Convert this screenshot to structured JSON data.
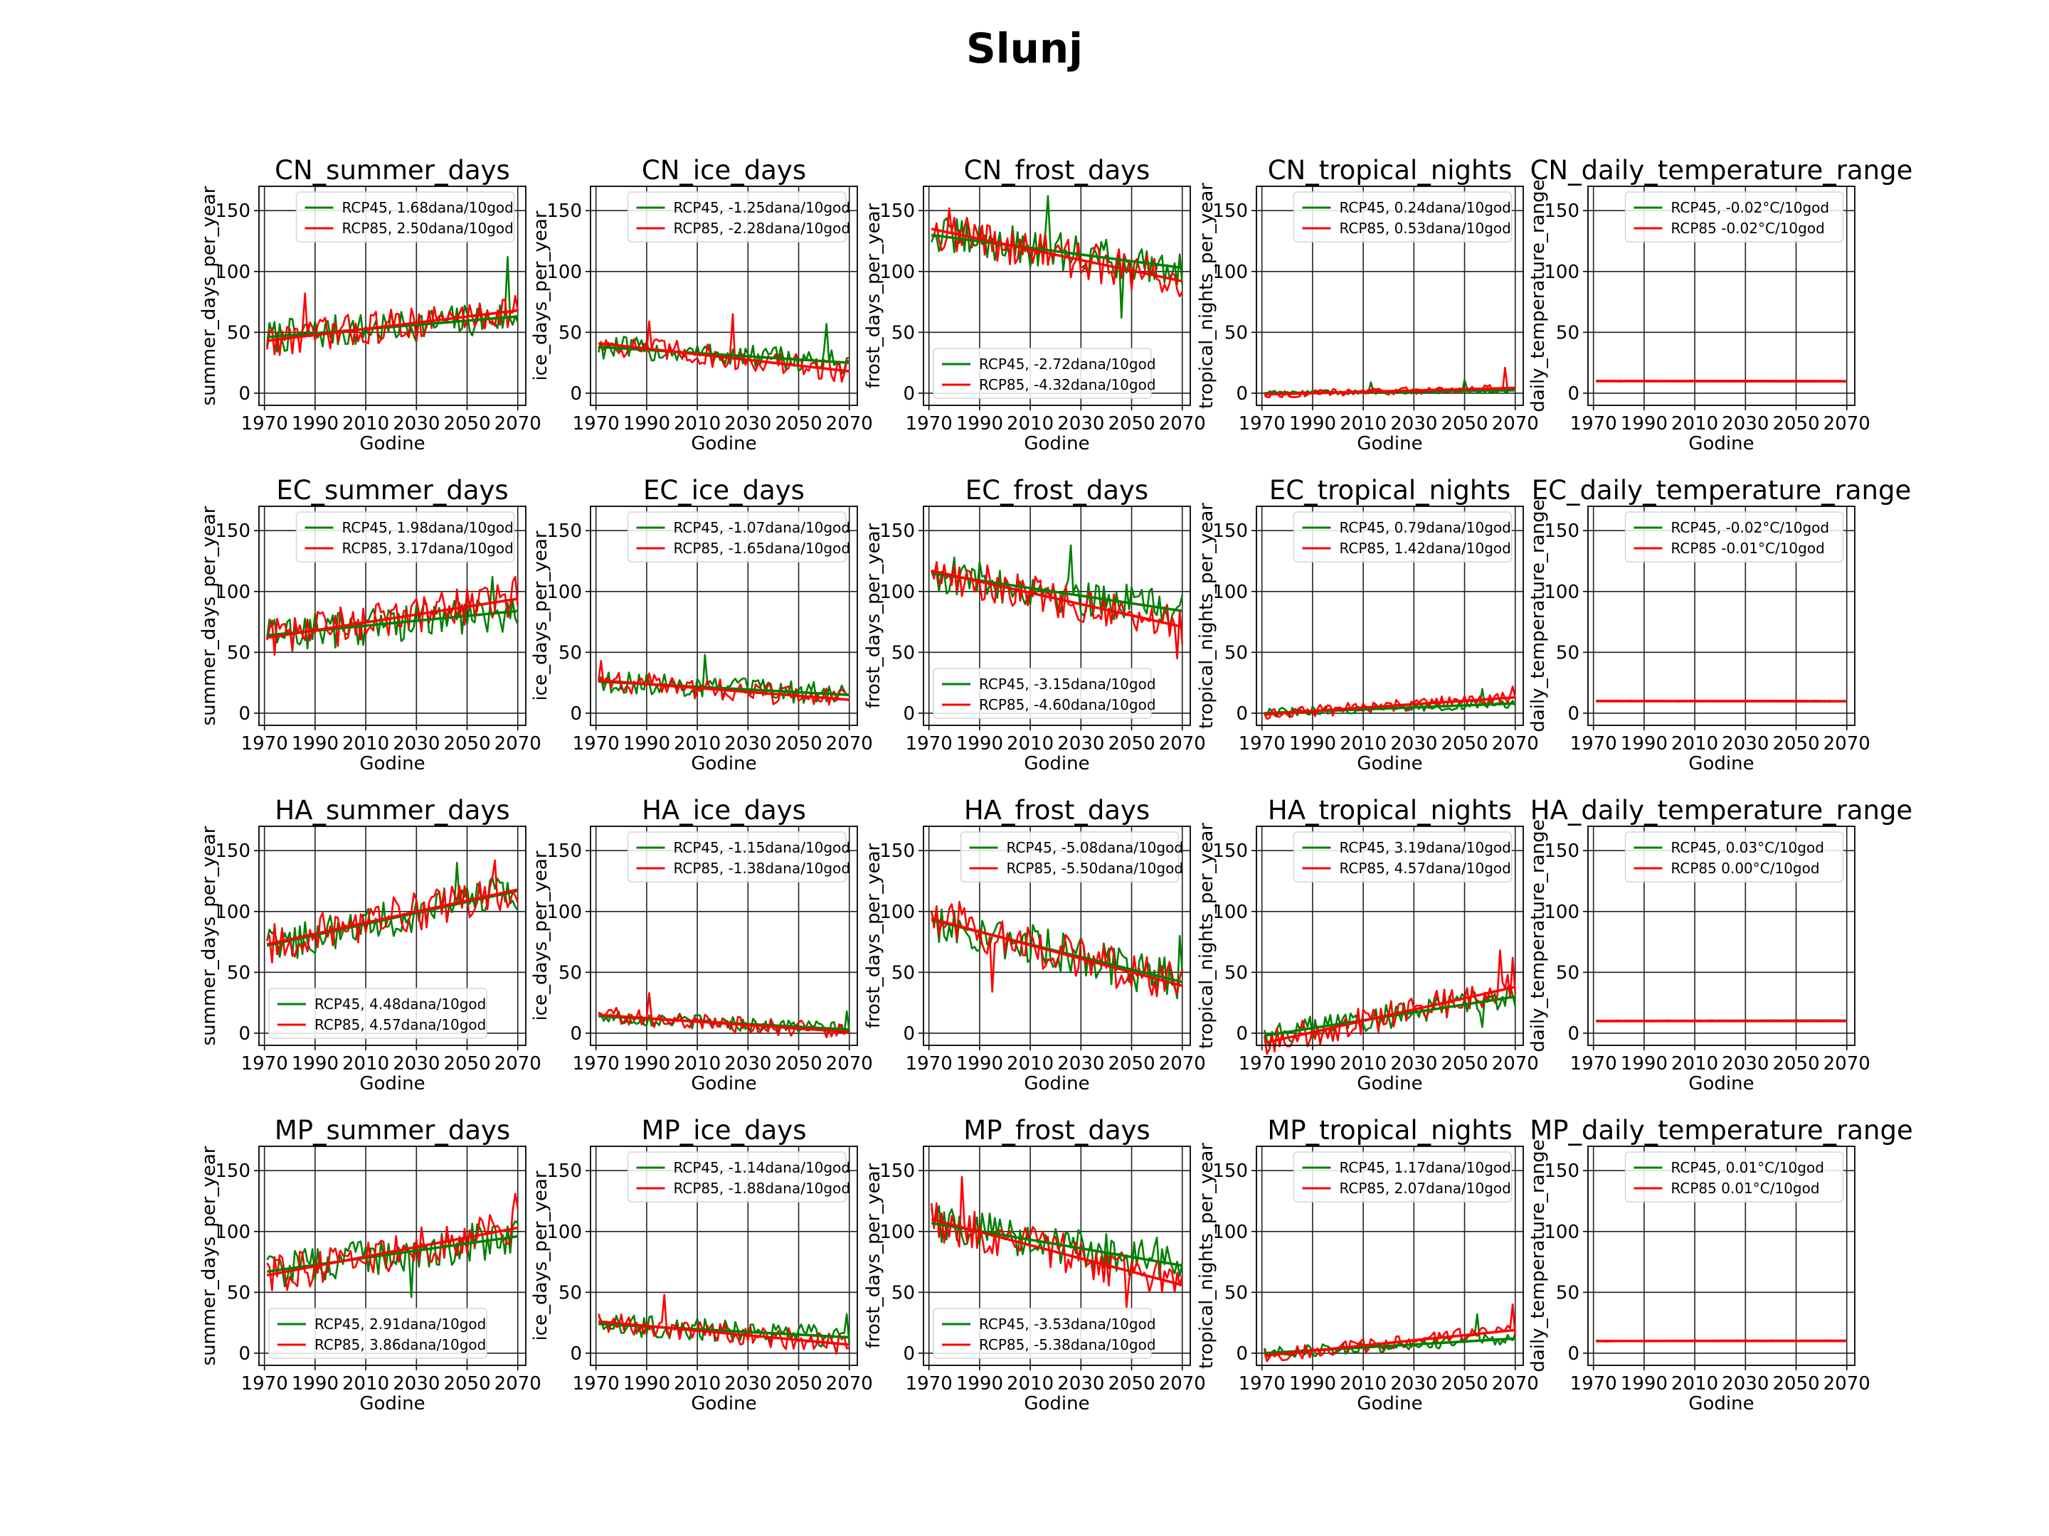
{
  "figure_title": "Slunj",
  "colors": {
    "RCP45": "#008000",
    "RCP85": "#ff0000",
    "grid": "#222222"
  },
  "chart_data": {
    "type": "line",
    "x_range": [
      1971,
      2070
    ],
    "x_ticks": [
      1970,
      1990,
      2010,
      2030,
      2050,
      2070
    ],
    "xlabel": "Godine",
    "rows": [
      "CN",
      "EC",
      "HA",
      "MP"
    ],
    "columns": [
      {
        "key": "summer_days",
        "ylabel": "summer_days_per_year",
        "ylim": [
          -10,
          170
        ],
        "y_ticks": [
          0,
          50,
          100,
          150
        ]
      },
      {
        "key": "ice_days",
        "ylabel": "ice_days_per_year",
        "ylim": [
          -10,
          170
        ],
        "y_ticks": [
          0,
          50,
          100,
          150
        ]
      },
      {
        "key": "frost_days",
        "ylabel": "frost_days_per_year",
        "ylim": [
          -10,
          170
        ],
        "y_ticks": [
          0,
          50,
          100,
          150
        ]
      },
      {
        "key": "tropical_nights",
        "ylabel": "tropical_nights_per_year",
        "ylim": [
          -10,
          170
        ],
        "y_ticks": [
          0,
          50,
          100,
          150
        ]
      },
      {
        "key": "daily_temperature_range",
        "ylabel": "daily_temperature_range",
        "ylim": [
          -10,
          170
        ],
        "y_ticks": [
          0,
          50,
          100,
          150
        ]
      }
    ],
    "panels": [
      {
        "title": "CN_summer_days",
        "legend_pos": "upper-center",
        "series": [
          {
            "name": "RCP45",
            "label": "RCP45, 1.68dana/10god",
            "trend": [
              46,
              63
            ],
            "amp": 14,
            "spikes": [
              [
                2066,
                112
              ]
            ]
          },
          {
            "name": "RCP85",
            "label": "RCP85, 2.50dana/10god",
            "trend": [
              43,
              68
            ],
            "amp": 14,
            "spikes": [
              [
                1986,
                82
              ],
              [
                2069,
                80
              ]
            ]
          }
        ]
      },
      {
        "title": "CN_ice_days",
        "legend_pos": "upper-center",
        "series": [
          {
            "name": "RCP45",
            "label": "RCP45, -1.25dana/10god",
            "trend": [
              38,
              25
            ],
            "amp": 10,
            "spikes": [
              [
                2061,
                57
              ]
            ]
          },
          {
            "name": "RCP85",
            "label": "RCP85, -2.28dana/10god",
            "trend": [
              41,
              18
            ],
            "amp": 10,
            "spikes": [
              [
                1991,
                59
              ],
              [
                2024,
                65
              ]
            ]
          }
        ]
      },
      {
        "title": "CN_frost_days",
        "legend_pos": "lower-left",
        "series": [
          {
            "name": "RCP45",
            "label": "RCP45, -2.72dana/10god",
            "trend": [
              130,
              103
            ],
            "amp": 16,
            "spikes": [
              [
                2017,
                162
              ],
              [
                2046,
                62
              ]
            ]
          },
          {
            "name": "RCP85",
            "label": "RCP85, -4.32dana/10god",
            "trend": [
              135,
              92
            ],
            "amp": 16,
            "spikes": [
              [
                1978,
                152
              ]
            ]
          }
        ]
      },
      {
        "title": "CN_tropical_nights",
        "legend_pos": "upper-center",
        "series": [
          {
            "name": "RCP45",
            "label": "RCP45, 0.24dana/10god",
            "trend": [
              0,
              2.4
            ],
            "amp": 2,
            "spikes": [
              [
                2013,
                9
              ],
              [
                2050,
                11
              ]
            ]
          },
          {
            "name": "RCP85",
            "label": "RCP85, 0.53dana/10god",
            "trend": [
              -1,
              4.3
            ],
            "amp": 3,
            "spikes": [
              [
                2066,
                21
              ]
            ]
          }
        ]
      },
      {
        "title": "CN_daily_temperature_range",
        "legend_pos": "upper-center",
        "series": [
          {
            "name": "RCP45",
            "label": "RCP45, -0.02°C/10god",
            "trend": [
              10,
              9.8
            ],
            "amp": 0.4,
            "spikes": []
          },
          {
            "name": "RCP85",
            "label": "RCP85 -0.02°C/10god",
            "trend": [
              10,
              9.8
            ],
            "amp": 0.4,
            "spikes": []
          }
        ]
      },
      {
        "title": "EC_summer_days",
        "legend_pos": "upper-center",
        "series": [
          {
            "name": "RCP45",
            "label": "RCP45, 1.98dana/10god",
            "trend": [
              64,
              84
            ],
            "amp": 16,
            "spikes": [
              [
                2060,
                112
              ]
            ]
          },
          {
            "name": "RCP85",
            "label": "RCP85, 3.17dana/10god",
            "trend": [
              62,
              94
            ],
            "amp": 16,
            "spikes": [
              [
                2069,
                112
              ]
            ]
          }
        ]
      },
      {
        "title": "EC_ice_days",
        "legend_pos": "upper-center",
        "series": [
          {
            "name": "RCP45",
            "label": "RCP45, -1.07dana/10god",
            "trend": [
              26,
              15
            ],
            "amp": 9,
            "spikes": [
              [
                2013,
                48
              ]
            ]
          },
          {
            "name": "RCP85",
            "label": "RCP85, -1.65dana/10god",
            "trend": [
              27,
              11
            ],
            "amp": 9,
            "spikes": [
              [
                1972,
                43
              ]
            ]
          }
        ]
      },
      {
        "title": "EC_frost_days",
        "legend_pos": "lower-left",
        "series": [
          {
            "name": "RCP45",
            "label": "RCP45, -3.15dana/10god",
            "trend": [
              115,
              84
            ],
            "amp": 16,
            "spikes": [
              [
                2026,
                138
              ]
            ]
          },
          {
            "name": "RCP85",
            "label": "RCP85, -4.60dana/10god",
            "trend": [
              117,
              71
            ],
            "amp": 16,
            "spikes": [
              [
                2068,
                45
              ]
            ]
          }
        ]
      },
      {
        "title": "EC_tropical_nights",
        "legend_pos": "upper-center",
        "series": [
          {
            "name": "RCP45",
            "label": "RCP45, 0.79dana/10god",
            "trend": [
              0,
              8
            ],
            "amp": 4,
            "spikes": [
              [
                2057,
                20
              ]
            ]
          },
          {
            "name": "RCP85",
            "label": "RCP85, 1.42dana/10god",
            "trend": [
              -1,
              13
            ],
            "amp": 5,
            "spikes": [
              [
                2069,
                22
              ]
            ]
          }
        ]
      },
      {
        "title": "EC_daily_temperature_range",
        "legend_pos": "upper-center",
        "series": [
          {
            "name": "RCP45",
            "label": "RCP45, -0.02°C/10god",
            "trend": [
              10,
              9.8
            ],
            "amp": 0.4,
            "spikes": []
          },
          {
            "name": "RCP85",
            "label": "RCP85 -0.01°C/10god",
            "trend": [
              10,
              9.9
            ],
            "amp": 0.4,
            "spikes": []
          }
        ]
      },
      {
        "title": "HA_summer_days",
        "legend_pos": "lower-left",
        "series": [
          {
            "name": "RCP45",
            "label": "RCP45, 4.48dana/10god",
            "trend": [
              72,
              117
            ],
            "amp": 16,
            "spikes": [
              [
                2046,
                140
              ]
            ]
          },
          {
            "name": "RCP85",
            "label": "RCP85, 4.57dana/10god",
            "trend": [
              73,
              118
            ],
            "amp": 16,
            "spikes": [
              [
                2061,
                142
              ]
            ]
          }
        ]
      },
      {
        "title": "HA_ice_days",
        "legend_pos": "upper-center",
        "series": [
          {
            "name": "RCP45",
            "label": "RCP45, -1.15dana/10god",
            "trend": [
              14,
              3
            ],
            "amp": 6,
            "spikes": [
              [
                2069,
                18
              ]
            ]
          },
          {
            "name": "RCP85",
            "label": "RCP85, -1.38dana/10god",
            "trend": [
              15,
              1
            ],
            "amp": 7,
            "spikes": [
              [
                1991,
                33
              ]
            ]
          }
        ]
      },
      {
        "title": "HA_frost_days",
        "legend_pos": "upper-center",
        "series": [
          {
            "name": "RCP45",
            "label": "RCP45, -5.08dana/10god",
            "trend": [
              93,
              42
            ],
            "amp": 17,
            "spikes": [
              [
                2069,
                80
              ]
            ]
          },
          {
            "name": "RCP85",
            "label": "RCP85, -5.50dana/10god",
            "trend": [
              94,
              39
            ],
            "amp": 17,
            "spikes": [
              [
                1982,
                108
              ],
              [
                1995,
                34
              ]
            ]
          }
        ]
      },
      {
        "title": "HA_tropical_nights",
        "legend_pos": "upper-center",
        "series": [
          {
            "name": "RCP45",
            "label": "RCP45, 3.19dana/10god",
            "trend": [
              -2,
              30
            ],
            "amp": 10,
            "spikes": [
              [
                2057,
                5
              ]
            ]
          },
          {
            "name": "RCP85",
            "label": "RCP85, 4.57dana/10god",
            "trend": [
              -8,
              38
            ],
            "amp": 12,
            "spikes": [
              [
                2064,
                68
              ],
              [
                2069,
                62
              ]
            ]
          }
        ]
      },
      {
        "title": "HA_daily_temperature_range",
        "legend_pos": "upper-center",
        "series": [
          {
            "name": "RCP45",
            "label": "RCP45, 0.03°C/10god",
            "trend": [
              10,
              10.3
            ],
            "amp": 0.4,
            "spikes": []
          },
          {
            "name": "RCP85",
            "label": "RCP85 0.00°C/10god",
            "trend": [
              10,
              10
            ],
            "amp": 0.4,
            "spikes": []
          }
        ]
      },
      {
        "title": "MP_summer_days",
        "legend_pos": "lower-left",
        "series": [
          {
            "name": "RCP45",
            "label": "RCP45, 2.91dana/10god",
            "trend": [
              67,
              96
            ],
            "amp": 16,
            "spikes": [
              [
                2028,
                46
              ]
            ]
          },
          {
            "name": "RCP85",
            "label": "RCP85, 3.86dana/10god",
            "trend": [
              64,
              103
            ],
            "amp": 16,
            "spikes": [
              [
                2069,
                131
              ]
            ]
          }
        ]
      },
      {
        "title": "MP_ice_days",
        "legend_pos": "upper-center",
        "series": [
          {
            "name": "RCP45",
            "label": "RCP45, -1.14dana/10god",
            "trend": [
              24,
              13
            ],
            "amp": 9,
            "spikes": [
              [
                2069,
                32
              ]
            ]
          },
          {
            "name": "RCP85",
            "label": "RCP85, -1.88dana/10god",
            "trend": [
              26,
              7
            ],
            "amp": 9,
            "spikes": [
              [
                1997,
                48
              ]
            ]
          }
        ]
      },
      {
        "title": "MP_frost_days",
        "legend_pos": "lower-left",
        "series": [
          {
            "name": "RCP45",
            "label": "RCP45, -3.53dana/10god",
            "trend": [
              107,
              72
            ],
            "amp": 16,
            "spikes": [
              [
                2060,
                95
              ]
            ]
          },
          {
            "name": "RCP85",
            "label": "RCP85, -5.38dana/10god",
            "trend": [
              110,
              56
            ],
            "amp": 17,
            "spikes": [
              [
                1983,
                145
              ],
              [
                2048,
                38
              ]
            ]
          }
        ]
      },
      {
        "title": "MP_tropical_nights",
        "legend_pos": "upper-center",
        "series": [
          {
            "name": "RCP45",
            "label": "RCP45, 1.17dana/10god",
            "trend": [
              0,
              12
            ],
            "amp": 5,
            "spikes": [
              [
                2055,
                32
              ]
            ]
          },
          {
            "name": "RCP85",
            "label": "RCP85, 2.07dana/10god",
            "trend": [
              -2,
              19
            ],
            "amp": 6,
            "spikes": [
              [
                2069,
                40
              ]
            ]
          }
        ]
      },
      {
        "title": "MP_daily_temperature_range",
        "legend_pos": "upper-center",
        "series": [
          {
            "name": "RCP45",
            "label": "RCP45, 0.01°C/10god",
            "trend": [
              10,
              10.1
            ],
            "amp": 0.4,
            "spikes": []
          },
          {
            "name": "RCP85",
            "label": "RCP85 0.01°C/10god",
            "trend": [
              10,
              10.1
            ],
            "amp": 0.4,
            "spikes": []
          }
        ]
      }
    ]
  }
}
